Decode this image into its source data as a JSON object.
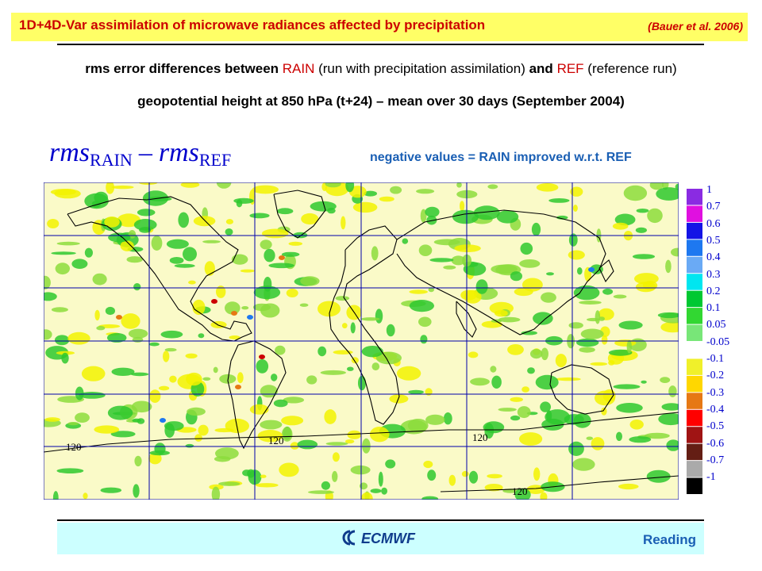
{
  "header": {
    "title": "1D+4D-Var assimilation of microwave radiances affected by precipitation",
    "reference": "(Bauer et al. 2006)"
  },
  "subtitle": {
    "line1_a": "rms error differences between ",
    "rain": "RAIN",
    "line1_b": " (run with precipitation assimilation) ",
    "and": "and",
    "line1_c": " ",
    "ref": "REF",
    "line1_d": " (reference run)",
    "line2": "geopotential height at 850 hPa (t+24) – mean over 30 days (September 2004)"
  },
  "formula": {
    "rms1": "rms",
    "sub1": "RAIN",
    "minus": "–",
    "rms2": "rms",
    "sub2": "REF"
  },
  "note": "negative values = RAIN improved w.r.t. REF",
  "map": {
    "contour_labels": [
      "120",
      "120",
      "120",
      "120"
    ],
    "colors": {
      "field_pale_yellow": "#fafac8",
      "field_yellow": "#f2f200",
      "field_green": "#2ec82e",
      "field_light_green": "#8cdc3c",
      "coastline": "#000000",
      "gridline": "#0000aa"
    }
  },
  "legend": {
    "labels": [
      "1",
      "0.7",
      "0.6",
      "0.5",
      "0.4",
      "0.3",
      "0.2",
      "0.1",
      "0.05",
      "-0.05",
      "-0.1",
      "-0.2",
      "-0.3",
      "-0.4",
      "-0.5",
      "-0.6",
      "-0.7",
      "-1"
    ],
    "colors": [
      "#8a2be2",
      "#e010e0",
      "#1414e6",
      "#1e78f0",
      "#6aaaf5",
      "#00e6f0",
      "#00c832",
      "#32d732",
      "#78e678",
      "#ffffff",
      "#f0f02a",
      "#ffd700",
      "#e67814",
      "#ff0000",
      "#a01414",
      "#641e14",
      "#aaaaaa",
      "#000000"
    ]
  },
  "footer": {
    "logo": "ECMWF",
    "location": "Reading"
  }
}
